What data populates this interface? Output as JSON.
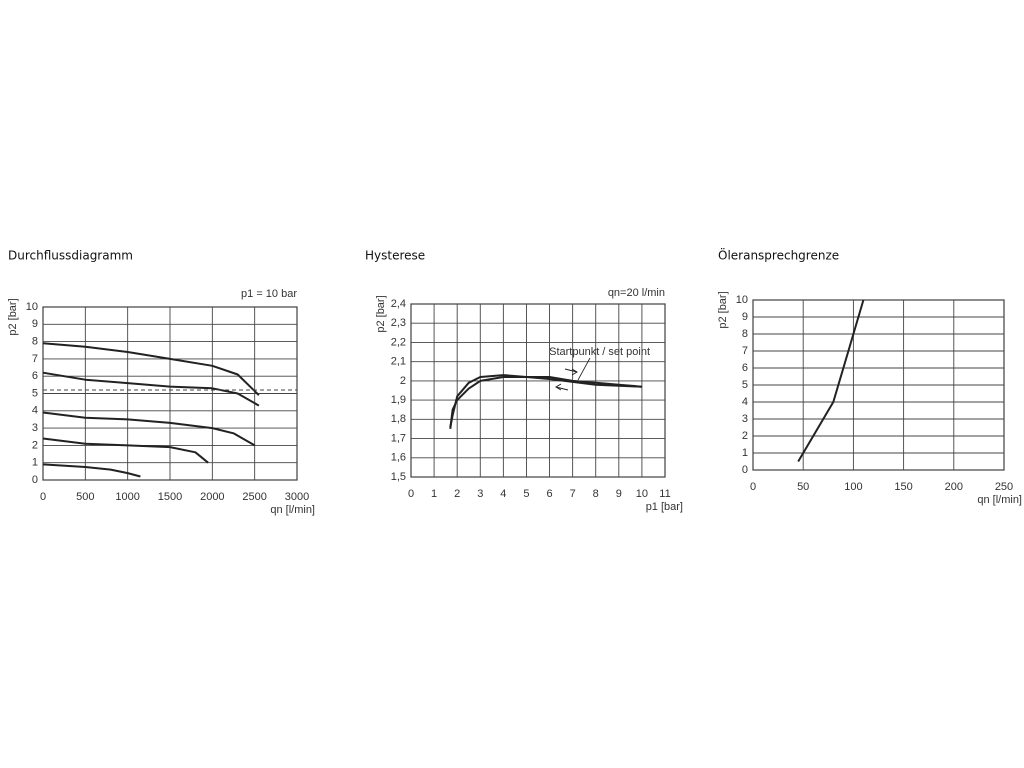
{
  "chart_data": [
    {
      "type": "line",
      "title": "Durchflussdiagramm",
      "annotations": [
        "p1 = 10 bar"
      ],
      "xlabel": "qn [l/min]",
      "ylabel": "p2 [bar]",
      "xlim": [
        0,
        3000
      ],
      "ylim": [
        0,
        10
      ],
      "xticks": [
        0,
        500,
        1000,
        1500,
        2000,
        2500,
        3000
      ],
      "yticks": [
        0,
        1,
        2,
        3,
        4,
        5,
        6,
        7,
        8,
        9,
        10
      ],
      "grid": true,
      "series": [
        {
          "color": "#222222",
          "x": [
            0,
            500,
            1000,
            1500,
            2000,
            2300,
            2550
          ],
          "values": [
            7.9,
            7.7,
            7.4,
            7.0,
            6.6,
            6.1,
            4.9
          ]
        },
        {
          "color": "#222222",
          "x": [
            0,
            500,
            1000,
            1500,
            2000,
            2300,
            2550
          ],
          "values": [
            6.2,
            5.8,
            5.6,
            5.4,
            5.3,
            5.0,
            4.3
          ]
        },
        {
          "color": "#444444",
          "line_style": "dashed",
          "x": [
            0,
            3000
          ],
          "values": [
            5.2,
            5.2
          ]
        },
        {
          "color": "#222222",
          "x": [
            0,
            500,
            1000,
            1500,
            2000,
            2250,
            2500
          ],
          "values": [
            3.9,
            3.6,
            3.5,
            3.3,
            3.0,
            2.7,
            2.0
          ]
        },
        {
          "color": "#222222",
          "x": [
            0,
            500,
            1000,
            1500,
            1800,
            1950
          ],
          "values": [
            2.4,
            2.1,
            2.0,
            1.9,
            1.6,
            1.0
          ]
        },
        {
          "color": "#222222",
          "x": [
            0,
            500,
            800,
            1000,
            1150
          ],
          "values": [
            0.9,
            0.75,
            0.6,
            0.4,
            0.2
          ]
        }
      ]
    },
    {
      "type": "line",
      "title": "Hysterese",
      "annotations": [
        "qn=20 l/min",
        "Startpunkt / set point"
      ],
      "xlabel": "p1 [bar]",
      "ylabel": "p2 [bar]",
      "xlim": [
        0,
        11
      ],
      "ylim": [
        1.5,
        2.4
      ],
      "xticks": [
        0,
        1,
        2,
        3,
        4,
        5,
        6,
        7,
        8,
        9,
        10,
        11
      ],
      "yticks": [
        {
          "value": 1.5,
          "label": "1,5"
        },
        {
          "value": 1.6,
          "label": "1,6"
        },
        {
          "value": 1.7,
          "label": "1,7"
        },
        {
          "value": 1.8,
          "label": "1,8"
        },
        {
          "value": 1.9,
          "label": "1,9"
        },
        2,
        {
          "value": 2.1,
          "label": "2,1"
        },
        {
          "value": 2.2,
          "label": "2,2"
        },
        {
          "value": 2.3,
          "label": "2,3"
        },
        {
          "value": 2.4,
          "label": "2,4"
        }
      ],
      "grid": true,
      "series": [
        {
          "color": "#222222",
          "x": [
            1.7,
            1.8,
            2,
            2.5,
            3,
            4,
            5,
            6,
            7,
            8,
            9,
            10
          ],
          "values": [
            1.75,
            1.85,
            1.9,
            1.96,
            2.0,
            2.02,
            2.02,
            2.02,
            2.0,
            1.99,
            1.98,
            1.97
          ]
        },
        {
          "color": "#222222",
          "x": [
            10,
            8,
            6,
            5,
            4,
            3,
            2.5,
            2,
            1.8,
            1.7
          ],
          "values": [
            1.97,
            1.98,
            2.01,
            2.02,
            2.03,
            2.02,
            1.99,
            1.92,
            1.82,
            1.76
          ]
        }
      ]
    },
    {
      "type": "line",
      "title": "Öleransprechgrenze",
      "annotations": [],
      "xlabel": "qn [l/min]",
      "ylabel": "p2 [bar]",
      "xlim": [
        0,
        250
      ],
      "ylim": [
        0,
        10
      ],
      "xticks": [
        0,
        50,
        100,
        150,
        200,
        250
      ],
      "yticks": [
        0,
        1,
        2,
        3,
        4,
        5,
        6,
        7,
        8,
        9,
        10
      ],
      "grid": true,
      "series": [
        {
          "color": "#222222",
          "x": [
            45,
            80,
            95,
            110
          ],
          "values": [
            0.5,
            4,
            7,
            10
          ]
        }
      ]
    }
  ]
}
